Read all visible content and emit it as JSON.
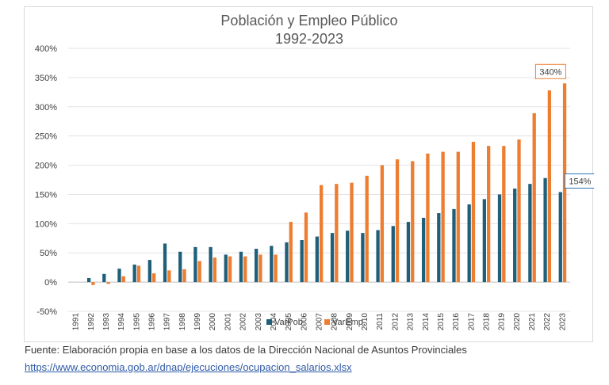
{
  "chart_data": {
    "type": "bar",
    "title": [
      "Población y Empleo Público",
      "1992-2023"
    ],
    "categories": [
      "1991",
      "1992",
      "1993",
      "1994",
      "1995",
      "1996",
      "1997",
      "1998",
      "1999",
      "2000",
      "2001",
      "2002",
      "2003",
      "2004",
      "2005",
      "2006",
      "2007",
      "2008",
      "2009",
      "2010",
      "2011",
      "2012",
      "2013",
      "2014",
      "2015",
      "2016",
      "2017",
      "2018",
      "2019",
      "2020",
      "2021",
      "2022",
      "2023"
    ],
    "series": [
      {
        "name": "VarPob.",
        "color": "#1f5f7a",
        "values": [
          0,
          7,
          14,
          23,
          30,
          38,
          66,
          52,
          60,
          60,
          47,
          52,
          57,
          62,
          68,
          72,
          78,
          84,
          88,
          84,
          89,
          96,
          103,
          110,
          118,
          125,
          133,
          142,
          150,
          160,
          168,
          178,
          154
        ]
      },
      {
        "name": "VarEmp.",
        "color": "#ed7d31",
        "values": [
          0,
          -5,
          -3,
          10,
          28,
          15,
          20,
          22,
          36,
          42,
          44,
          44,
          47,
          47,
          103,
          119,
          166,
          168,
          170,
          182,
          200,
          210,
          207,
          220,
          223,
          223,
          240,
          233,
          233,
          244,
          289,
          328,
          340
        ]
      }
    ],
    "ylim": [
      -50,
      400
    ],
    "yticks": [
      "-50%",
      "0%",
      "50%",
      "100%",
      "150%",
      "200%",
      "250%",
      "300%",
      "350%",
      "400%"
    ],
    "ytick_values": [
      -50,
      0,
      50,
      100,
      150,
      200,
      250,
      300,
      350,
      400
    ],
    "grid": true,
    "legend_position": "bottom",
    "annotations": [
      {
        "text": "340%",
        "series": "VarEmp.",
        "category": "2023",
        "border_color": "#ed7d31"
      },
      {
        "text": "154%",
        "series": "VarPob.",
        "category": "2023",
        "border_color": "#2e75b6"
      }
    ]
  },
  "source": {
    "text": "Fuente: Elaboración propia en base a los datos de la Dirección Nacional de Asuntos Provinciales",
    "link": "https://www.economia.gob.ar/dnap/ejecuciones/ocupacion_salarios.xlsx"
  }
}
